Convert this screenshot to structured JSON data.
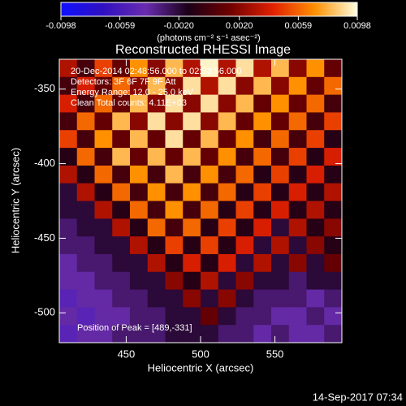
{
  "chart_data": {
    "type": "heatmap",
    "title": "Reconstructed RHESSI Image",
    "xlabel": "Heliocentric X (arcsec)",
    "ylabel": "Heliocentric Y (arcsec)",
    "xlim": [
      405,
      595
    ],
    "ylim": [
      -520,
      -330
    ],
    "xticks": [
      450,
      500,
      550
    ],
    "yticks": [
      -350,
      -400,
      -450,
      -500
    ],
    "zlim": [
      -0.0098,
      0.0098
    ],
    "zticks": [
      -0.0098,
      -0.0059,
      {
        "value": -0.002,
        "label": "-0.0020"
      },
      {
        "value": 0.002,
        "label": "0.0020"
      },
      0.0059,
      0.0098
    ],
    "zlabel": "(photons cm⁻² s⁻¹ asec⁻²)",
    "colormap": [
      "#1010ff",
      "#3010c0",
      "#6a2cb0",
      "#1a0018",
      "#700000",
      "#e02000",
      "#ff9000",
      "#ffffe0"
    ],
    "annotations": [
      "20-Dec-2014 02:48:56.000 to 02:53:56.000",
      "Detectors: 3F 6F 7F 9F  Att",
      "Energy Range: 12.0 - 25.0 keV",
      "Clean     Total counts: 4.11E+03"
    ],
    "peak_label": "Position of Peak = [489,-331]",
    "timestamp": "14-Sep-2017 07:34",
    "z": [
      [
        0.003,
        0.0,
        0.005,
        0.001,
        0.007,
        0.002,
        0.008,
        0.003,
        0.0095,
        0.003,
        0.009,
        0.003,
        0.008,
        0.002,
        0.007,
        0.001
      ],
      [
        0.0,
        0.004,
        0.001,
        0.006,
        0.002,
        0.008,
        0.002,
        0.009,
        0.003,
        0.009,
        0.002,
        0.008,
        0.002,
        0.007,
        0.001,
        0.006
      ],
      [
        0.004,
        0.0,
        0.006,
        0.001,
        0.008,
        0.002,
        0.009,
        0.002,
        0.009,
        0.002,
        0.008,
        0.001,
        0.007,
        0.001,
        0.006,
        0.0
      ],
      [
        0.0,
        0.006,
        0.001,
        0.008,
        0.002,
        0.009,
        0.002,
        0.009,
        0.002,
        0.008,
        0.001,
        0.007,
        0.001,
        0.006,
        0.0,
        0.005
      ],
      [
        0.005,
        0.0,
        0.007,
        0.001,
        0.008,
        0.001,
        0.009,
        0.001,
        0.008,
        0.001,
        0.007,
        0.0,
        0.006,
        0.0,
        0.005,
        -0.001
      ],
      [
        -0.001,
        0.006,
        0.0,
        0.008,
        0.001,
        0.008,
        0.001,
        0.008,
        0.001,
        0.007,
        0.0,
        0.006,
        0.0,
        0.005,
        -0.001,
        0.004
      ],
      [
        0.003,
        -0.001,
        0.006,
        0.0,
        0.007,
        0.0,
        0.008,
        0.0,
        0.007,
        0.0,
        0.006,
        -0.001,
        0.005,
        -0.001,
        0.004,
        -0.001
      ],
      [
        -0.002,
        0.003,
        -0.001,
        0.006,
        0.0,
        0.007,
        0.0,
        0.007,
        0.0,
        0.006,
        -0.001,
        0.005,
        -0.001,
        0.004,
        -0.001,
        0.003
      ],
      [
        -0.002,
        -0.002,
        0.003,
        -0.001,
        0.006,
        0.0,
        0.007,
        0.0,
        0.006,
        -0.001,
        0.005,
        -0.001,
        0.004,
        -0.001,
        0.003,
        -0.001
      ],
      [
        -0.003,
        -0.002,
        -0.002,
        0.003,
        -0.001,
        0.006,
        0.0,
        0.006,
        -0.001,
        0.005,
        -0.001,
        0.004,
        -0.002,
        0.003,
        -0.001,
        0.002
      ],
      [
        -0.003,
        -0.003,
        -0.002,
        -0.002,
        0.003,
        -0.001,
        0.005,
        -0.001,
        0.005,
        -0.001,
        0.004,
        -0.002,
        0.003,
        -0.002,
        0.002,
        -0.001
      ],
      [
        -0.004,
        -0.003,
        -0.003,
        -0.002,
        -0.002,
        0.003,
        -0.001,
        0.004,
        -0.001,
        0.004,
        -0.002,
        0.003,
        -0.002,
        0.002,
        -0.002,
        0.001
      ],
      [
        -0.004,
        -0.004,
        -0.003,
        -0.003,
        -0.002,
        -0.002,
        0.002,
        -0.001,
        0.003,
        -0.002,
        0.002,
        -0.002,
        -0.002,
        -0.003,
        -0.002,
        -0.002
      ],
      [
        -0.005,
        -0.004,
        -0.004,
        -0.003,
        -0.003,
        -0.002,
        -0.002,
        0.002,
        -0.002,
        0.002,
        -0.002,
        -0.003,
        -0.003,
        -0.003,
        -0.004,
        -0.003
      ],
      [
        -0.004,
        -0.005,
        -0.004,
        -0.004,
        -0.003,
        -0.003,
        -0.002,
        -0.002,
        0.001,
        -0.002,
        -0.003,
        -0.003,
        -0.004,
        -0.004,
        -0.003,
        -0.004
      ],
      [
        -0.005,
        -0.004,
        -0.004,
        -0.003,
        -0.003,
        -0.003,
        -0.002,
        -0.002,
        -0.002,
        -0.003,
        -0.003,
        -0.004,
        -0.003,
        -0.004,
        -0.004,
        -0.003
      ]
    ]
  }
}
